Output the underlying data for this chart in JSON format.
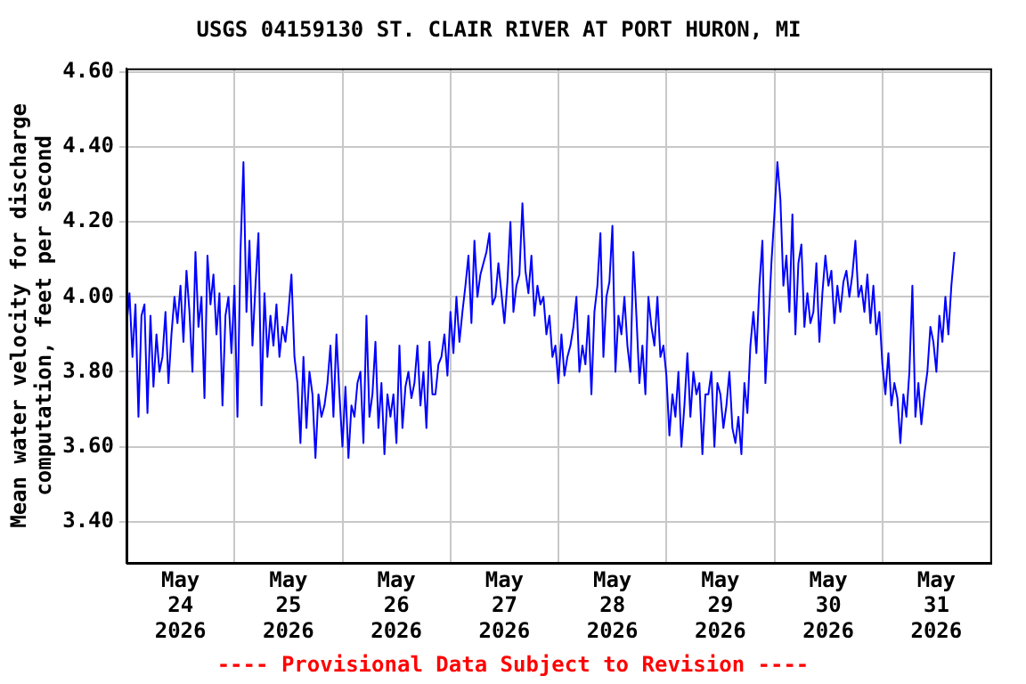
{
  "chart_data": {
    "type": "line",
    "title": "USGS 04159130 ST. CLAIR RIVER AT PORT HURON, MI",
    "ylabel": "Mean water velocity for discharge\ncomputation, feet per second",
    "annotations": [
      "---- Provisional Data Subject to Revision ----"
    ],
    "xlim": [
      "2026-05-24",
      "2026-06-01"
    ],
    "xticks": [
      {
        "value": "2026-05-24",
        "label": null
      },
      {
        "value": "2026-05-24T12:00",
        "label": "May 24 2026"
      },
      {
        "value": "2026-05-25",
        "label": null
      },
      {
        "value": "2026-05-25T12:00",
        "label": "May 25 2026"
      },
      {
        "value": "2026-05-26",
        "label": null
      },
      {
        "value": "2026-05-26T12:00",
        "label": "May 26 2026"
      },
      {
        "value": "2026-05-27",
        "label": null
      },
      {
        "value": "2026-05-27T12:00",
        "label": "May 27 2026"
      },
      {
        "value": "2026-05-28",
        "label": null
      },
      {
        "value": "2026-05-28T12:00",
        "label": "May 28 2026"
      },
      {
        "value": "2026-05-29",
        "label": null
      },
      {
        "value": "2026-05-29T12:00",
        "label": "May 29 2026"
      },
      {
        "value": "2026-05-30",
        "label": null
      },
      {
        "value": "2026-05-30T12:00",
        "label": "May 30 2026"
      },
      {
        "value": "2026-05-31",
        "label": null
      },
      {
        "value": "2026-05-31T12:00",
        "label": "May 31 2026"
      },
      {
        "value": "2026-06-01",
        "label": null
      }
    ],
    "ylim": [
      3.29,
      4.61
    ],
    "yticks": [
      {
        "value": 3.4,
        "label": "3.40"
      },
      {
        "value": 3.6,
        "label": "3.60"
      },
      {
        "value": 3.8,
        "label": "3.80"
      },
      {
        "value": 4.0,
        "label": "4.00"
      },
      {
        "value": 4.2,
        "label": "4.20"
      },
      {
        "value": 4.4,
        "label": "4.40"
      },
      {
        "value": 4.6,
        "label": "4.60"
      }
    ],
    "grid": true,
    "marker": "none",
    "series": [
      {
        "color": "#0000ff",
        "x": [
          "2026-05-24T00:00",
          "2026-05-24T00:40",
          "2026-05-24T01:20",
          "2026-05-24T02:00",
          "2026-05-24T02:40",
          "2026-05-24T03:20",
          "2026-05-24T04:00",
          "2026-05-24T04:40",
          "2026-05-24T05:20",
          "2026-05-24T06:00",
          "2026-05-24T06:40",
          "2026-05-24T07:20",
          "2026-05-24T08:00",
          "2026-05-24T08:40",
          "2026-05-24T09:20",
          "2026-05-24T10:00",
          "2026-05-24T10:40",
          "2026-05-24T11:20",
          "2026-05-24T12:00",
          "2026-05-24T12:40",
          "2026-05-24T13:20",
          "2026-05-24T14:00",
          "2026-05-24T14:40",
          "2026-05-24T15:20",
          "2026-05-24T16:00",
          "2026-05-24T16:40",
          "2026-05-24T17:20",
          "2026-05-24T18:00",
          "2026-05-24T18:40",
          "2026-05-24T19:20",
          "2026-05-24T20:00",
          "2026-05-24T20:40",
          "2026-05-24T21:20",
          "2026-05-24T22:00",
          "2026-05-24T22:40",
          "2026-05-24T23:20",
          "2026-05-25T00:00",
          "2026-05-25T00:40",
          "2026-05-25T01:20",
          "2026-05-25T02:00",
          "2026-05-25T02:40",
          "2026-05-25T03:20",
          "2026-05-25T04:00",
          "2026-05-25T04:40",
          "2026-05-25T05:20",
          "2026-05-25T06:00",
          "2026-05-25T06:40",
          "2026-05-25T07:20",
          "2026-05-25T08:00",
          "2026-05-25T08:40",
          "2026-05-25T09:20",
          "2026-05-25T10:00",
          "2026-05-25T10:40",
          "2026-05-25T11:20",
          "2026-05-25T12:00",
          "2026-05-25T12:40",
          "2026-05-25T13:20",
          "2026-05-25T14:00",
          "2026-05-25T14:40",
          "2026-05-25T15:20",
          "2026-05-25T16:00",
          "2026-05-25T16:40",
          "2026-05-25T17:20",
          "2026-05-25T18:00",
          "2026-05-25T18:40",
          "2026-05-25T19:20",
          "2026-05-25T20:00",
          "2026-05-25T20:40",
          "2026-05-25T21:20",
          "2026-05-25T22:00",
          "2026-05-25T22:40",
          "2026-05-25T23:20",
          "2026-05-26T00:00",
          "2026-05-26T00:40",
          "2026-05-26T01:20",
          "2026-05-26T02:00",
          "2026-05-26T02:40",
          "2026-05-26T03:20",
          "2026-05-26T04:00",
          "2026-05-26T04:40",
          "2026-05-26T05:20",
          "2026-05-26T06:00",
          "2026-05-26T06:40",
          "2026-05-26T07:20",
          "2026-05-26T08:00",
          "2026-05-26T08:40",
          "2026-05-26T09:20",
          "2026-05-26T10:00",
          "2026-05-26T10:40",
          "2026-05-26T11:20",
          "2026-05-26T12:00",
          "2026-05-26T12:40",
          "2026-05-26T13:20",
          "2026-05-26T14:00",
          "2026-05-26T14:40",
          "2026-05-26T15:20",
          "2026-05-26T16:00",
          "2026-05-26T16:40",
          "2026-05-26T17:20",
          "2026-05-26T18:00",
          "2026-05-26T18:40",
          "2026-05-26T19:20",
          "2026-05-26T20:00",
          "2026-05-26T20:40",
          "2026-05-26T21:20",
          "2026-05-26T22:00",
          "2026-05-26T22:40",
          "2026-05-26T23:20",
          "2026-05-27T00:00",
          "2026-05-27T00:40",
          "2026-05-27T01:20",
          "2026-05-27T02:00",
          "2026-05-27T02:40",
          "2026-05-27T03:20",
          "2026-05-27T04:00",
          "2026-05-27T04:40",
          "2026-05-27T05:20",
          "2026-05-27T06:00",
          "2026-05-27T06:40",
          "2026-05-27T07:20",
          "2026-05-27T08:00",
          "2026-05-27T08:40",
          "2026-05-27T09:20",
          "2026-05-27T10:00",
          "2026-05-27T10:40",
          "2026-05-27T11:20",
          "2026-05-27T12:00",
          "2026-05-27T12:40",
          "2026-05-27T13:20",
          "2026-05-27T14:00",
          "2026-05-27T14:40",
          "2026-05-27T15:20",
          "2026-05-27T16:00",
          "2026-05-27T16:40",
          "2026-05-27T17:20",
          "2026-05-27T18:00",
          "2026-05-27T18:40",
          "2026-05-27T19:20",
          "2026-05-27T20:00",
          "2026-05-27T20:40",
          "2026-05-27T21:20",
          "2026-05-27T22:00",
          "2026-05-27T22:40",
          "2026-05-27T23:20",
          "2026-05-28T00:00",
          "2026-05-28T00:40",
          "2026-05-28T01:20",
          "2026-05-28T02:00",
          "2026-05-28T02:40",
          "2026-05-28T03:20",
          "2026-05-28T04:00",
          "2026-05-28T04:40",
          "2026-05-28T05:20",
          "2026-05-28T06:00",
          "2026-05-28T06:40",
          "2026-05-28T07:20",
          "2026-05-28T08:00",
          "2026-05-28T08:40",
          "2026-05-28T09:20",
          "2026-05-28T10:00",
          "2026-05-28T10:40",
          "2026-05-28T11:20",
          "2026-05-28T12:00",
          "2026-05-28T12:40",
          "2026-05-28T13:20",
          "2026-05-28T14:00",
          "2026-05-28T14:40",
          "2026-05-28T15:20",
          "2026-05-28T16:00",
          "2026-05-28T16:40",
          "2026-05-28T17:20",
          "2026-05-28T18:00",
          "2026-05-28T18:40",
          "2026-05-28T19:20",
          "2026-05-28T20:00",
          "2026-05-28T20:40",
          "2026-05-28T21:20",
          "2026-05-28T22:00",
          "2026-05-28T22:40",
          "2026-05-28T23:20",
          "2026-05-29T00:00",
          "2026-05-29T00:40",
          "2026-05-29T01:20",
          "2026-05-29T02:00",
          "2026-05-29T02:40",
          "2026-05-29T03:20",
          "2026-05-29T04:00",
          "2026-05-29T04:40",
          "2026-05-29T05:20",
          "2026-05-29T06:00",
          "2026-05-29T06:40",
          "2026-05-29T07:20",
          "2026-05-29T08:00",
          "2026-05-29T08:40",
          "2026-05-29T09:20",
          "2026-05-29T10:00",
          "2026-05-29T10:40",
          "2026-05-29T11:20",
          "2026-05-29T12:00",
          "2026-05-29T12:40",
          "2026-05-29T13:20",
          "2026-05-29T14:00",
          "2026-05-29T14:40",
          "2026-05-29T15:20",
          "2026-05-29T16:00",
          "2026-05-29T16:40",
          "2026-05-29T17:20",
          "2026-05-29T18:00",
          "2026-05-29T18:40",
          "2026-05-29T19:20",
          "2026-05-29T20:00",
          "2026-05-29T20:40",
          "2026-05-29T21:20",
          "2026-05-29T22:00",
          "2026-05-29T22:40",
          "2026-05-29T23:20",
          "2026-05-30T00:00",
          "2026-05-30T00:40",
          "2026-05-30T01:20",
          "2026-05-30T02:00",
          "2026-05-30T02:40",
          "2026-05-30T03:20",
          "2026-05-30T04:00",
          "2026-05-30T04:40",
          "2026-05-30T05:20",
          "2026-05-30T06:00",
          "2026-05-30T06:40",
          "2026-05-30T07:20",
          "2026-05-30T08:00",
          "2026-05-30T08:40",
          "2026-05-30T09:20",
          "2026-05-30T10:00",
          "2026-05-30T10:40",
          "2026-05-30T11:20",
          "2026-05-30T12:00",
          "2026-05-30T12:40",
          "2026-05-30T13:20",
          "2026-05-30T14:00",
          "2026-05-30T14:40",
          "2026-05-30T15:20",
          "2026-05-30T16:00",
          "2026-05-30T16:40",
          "2026-05-30T17:20",
          "2026-05-30T18:00",
          "2026-05-30T18:40",
          "2026-05-30T19:20",
          "2026-05-30T20:00",
          "2026-05-30T20:40",
          "2026-05-30T21:20",
          "2026-05-30T22:00",
          "2026-05-30T22:40",
          "2026-05-30T23:20",
          "2026-05-31T00:00",
          "2026-05-31T00:40",
          "2026-05-31T01:20",
          "2026-05-31T02:00",
          "2026-05-31T02:40",
          "2026-05-31T03:20",
          "2026-05-31T04:00",
          "2026-05-31T04:40",
          "2026-05-31T05:20",
          "2026-05-31T06:00",
          "2026-05-31T06:40",
          "2026-05-31T07:20",
          "2026-05-31T08:00",
          "2026-05-31T08:40",
          "2026-05-31T09:20",
          "2026-05-31T10:00",
          "2026-05-31T10:40",
          "2026-05-31T11:20",
          "2026-05-31T12:00",
          "2026-05-31T12:40",
          "2026-05-31T13:20",
          "2026-05-31T14:00",
          "2026-05-31T14:40",
          "2026-05-31T15:20",
          "2026-05-31T16:00"
        ],
        "values": [
          3.92,
          4.01,
          3.84,
          3.98,
          3.68,
          3.95,
          3.98,
          3.69,
          3.95,
          3.76,
          3.9,
          3.8,
          3.84,
          3.96,
          3.77,
          3.9,
          4.0,
          3.93,
          4.03,
          3.88,
          4.07,
          3.96,
          3.8,
          4.12,
          3.92,
          4.0,
          3.73,
          4.11,
          3.98,
          4.06,
          3.9,
          4.01,
          3.71,
          3.95,
          4.0,
          3.85,
          4.03,
          3.68,
          4.12,
          4.36,
          3.96,
          4.15,
          3.87,
          4.03,
          4.17,
          3.71,
          4.01,
          3.84,
          3.95,
          3.87,
          3.98,
          3.84,
          3.92,
          3.88,
          3.96,
          4.06,
          3.84,
          3.77,
          3.61,
          3.84,
          3.65,
          3.8,
          3.74,
          3.57,
          3.74,
          3.68,
          3.71,
          3.77,
          3.87,
          3.68,
          3.9,
          3.74,
          3.6,
          3.76,
          3.57,
          3.71,
          3.68,
          3.77,
          3.8,
          3.61,
          3.95,
          3.68,
          3.74,
          3.88,
          3.65,
          3.77,
          3.58,
          3.74,
          3.68,
          3.74,
          3.61,
          3.87,
          3.65,
          3.76,
          3.8,
          3.73,
          3.77,
          3.87,
          3.71,
          3.8,
          3.65,
          3.88,
          3.74,
          3.74,
          3.82,
          3.84,
          3.9,
          3.79,
          3.96,
          3.85,
          4.0,
          3.88,
          3.96,
          4.03,
          4.11,
          3.93,
          4.15,
          4.0,
          4.06,
          4.09,
          4.12,
          4.17,
          3.98,
          4.0,
          4.09,
          4.01,
          3.93,
          4.04,
          4.2,
          3.96,
          4.03,
          4.06,
          4.25,
          4.07,
          4.01,
          4.11,
          3.95,
          4.03,
          3.98,
          4.0,
          3.9,
          3.95,
          3.84,
          3.87,
          3.77,
          3.9,
          3.79,
          3.84,
          3.87,
          3.92,
          4.0,
          3.8,
          3.87,
          3.82,
          3.95,
          3.74,
          3.96,
          4.03,
          4.17,
          3.84,
          4.0,
          4.04,
          4.19,
          3.8,
          3.95,
          3.9,
          4.0,
          3.87,
          3.8,
          4.12,
          3.95,
          3.77,
          3.87,
          3.74,
          4.0,
          3.92,
          3.87,
          4.0,
          3.84,
          3.87,
          3.79,
          3.63,
          3.74,
          3.68,
          3.8,
          3.6,
          3.71,
          3.85,
          3.68,
          3.8,
          3.74,
          3.77,
          3.58,
          3.74,
          3.74,
          3.8,
          3.6,
          3.77,
          3.74,
          3.65,
          3.71,
          3.8,
          3.65,
          3.61,
          3.68,
          3.58,
          3.77,
          3.69,
          3.87,
          3.96,
          3.85,
          4.03,
          4.15,
          3.77,
          3.92,
          4.09,
          4.22,
          4.36,
          4.26,
          4.03,
          4.11,
          3.96,
          4.22,
          3.9,
          4.09,
          4.14,
          3.92,
          4.01,
          3.93,
          3.96,
          4.09,
          3.88,
          4.01,
          4.11,
          4.03,
          4.07,
          3.93,
          4.03,
          3.96,
          4.04,
          4.07,
          4.0,
          4.06,
          4.15,
          4.0,
          4.03,
          3.96,
          4.06,
          3.93,
          4.03,
          3.9,
          3.96,
          3.82,
          3.74,
          3.85,
          3.71,
          3.77,
          3.73,
          3.61,
          3.74,
          3.68,
          3.8,
          4.03,
          3.68,
          3.77,
          3.66,
          3.74,
          3.8,
          3.92,
          3.88,
          3.8,
          3.95,
          3.88,
          4.0,
          3.9,
          4.03,
          4.12
        ]
      }
    ]
  }
}
